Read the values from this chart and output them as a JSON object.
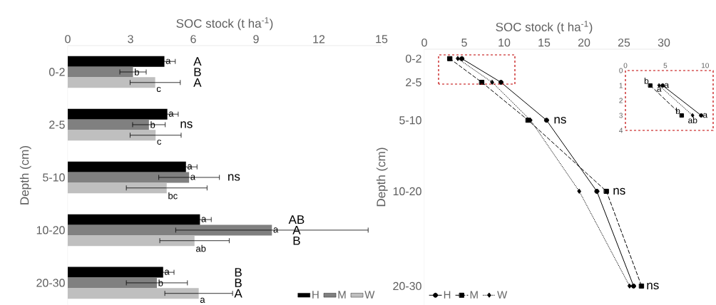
{
  "chart_data": [
    {
      "type": "bar",
      "orientation": "horizontal",
      "xlabel": "SOC stock (t ha$^{-1}$)",
      "ylabel": "Depth (cm)",
      "categories": [
        "0-2",
        "2-5",
        "5-10",
        "10-20",
        "20-30"
      ],
      "series": [
        {
          "name": "H",
          "color": "#000000",
          "values": [
            4.62,
            4.76,
            5.65,
            6.32,
            4.56
          ],
          "errors": [
            0.52,
            0.52,
            0.53,
            0.54,
            0.52
          ],
          "value_labels": [
            "a",
            "a",
            "a",
            "a",
            "a"
          ]
        },
        {
          "name": "M",
          "color": "#808080",
          "values": [
            3.12,
            3.88,
            5.8,
            9.76,
            4.26
          ],
          "errors": [
            0.63,
            0.78,
            1.45,
            4.6,
            1.46
          ],
          "value_labels": [
            "b",
            "b",
            "a",
            "a",
            "b"
          ]
        },
        {
          "name": "W",
          "color": "#bfbfbf",
          "values": [
            4.18,
            4.2,
            4.73,
            6.06,
            6.26
          ],
          "errors": [
            1.2,
            1.22,
            1.93,
            1.66,
            1.62
          ],
          "value_labels": [
            "c",
            "c",
            "bc",
            "ab",
            "a"
          ]
        }
      ],
      "xlim": [
        0,
        15
      ],
      "xticks": [
        0,
        3,
        6,
        9,
        12,
        15
      ],
      "legend": "bottom right",
      "annotations": [
        "A",
        "B",
        "A",
        "ns",
        "ns",
        "AB",
        "A",
        "B",
        "B",
        "B",
        "A"
      ]
    },
    {
      "type": "line",
      "orientation": "horizontal",
      "xlabel": "SOC stock (t ha$^{-1}$)",
      "ylabel": "Depth (cm)",
      "categories": [
        "0-2",
        "2-5",
        "5-10",
        "10-20",
        "20-30"
      ],
      "series": [
        {
          "name": "H",
          "color": "#000000",
          "marker": "circle",
          "line_style": "solid",
          "values": [
            4.7,
            9.6,
            15.3,
            21.6,
            26.2
          ]
        },
        {
          "name": "M",
          "color": "#000000",
          "marker": "square",
          "line_style": "dashed",
          "values": [
            3.2,
            7.2,
            13.0,
            22.8,
            27.2
          ]
        },
        {
          "name": "W",
          "color": "#000000",
          "marker": "diamond",
          "line_style": "dotted",
          "values": [
            4.2,
            8.5,
            13.3,
            19.4,
            25.7
          ]
        }
      ],
      "xlim": [
        0,
        30
      ],
      "xticks": [
        0,
        5,
        10,
        15,
        20,
        25,
        30
      ],
      "legend": "bottom left",
      "annotations": [
        "ns",
        "ns",
        "ns"
      ]
    },
    {
      "type": "line",
      "series": [
        {
          "color": "#000000",
          "marker": "circle",
          "line_style": "solid",
          "x": [
            4.67,
            9.5
          ],
          "values": [
            1,
            3
          ],
          "value_labels": [
            "a",
            "a"
          ]
        },
        {
          "color": "#000000",
          "marker": "square",
          "line_style": "dashed",
          "x": [
            3.13,
            7.07
          ],
          "values": [
            1,
            3
          ],
          "value_labels": [
            "b",
            "b"
          ]
        },
        {
          "color": "#000000",
          "marker": "diamond",
          "line_style": "dotted",
          "x": [
            4.23,
            8.43
          ],
          "values": [
            1,
            3
          ],
          "value_labels": [
            "a",
            "ab"
          ]
        }
      ],
      "xlim": [
        0,
        11
      ],
      "xticks": [
        0,
        5,
        10
      ],
      "ylim": [
        4,
        0
      ],
      "yticks": [
        0,
        1,
        2,
        3,
        4
      ]
    }
  ]
}
